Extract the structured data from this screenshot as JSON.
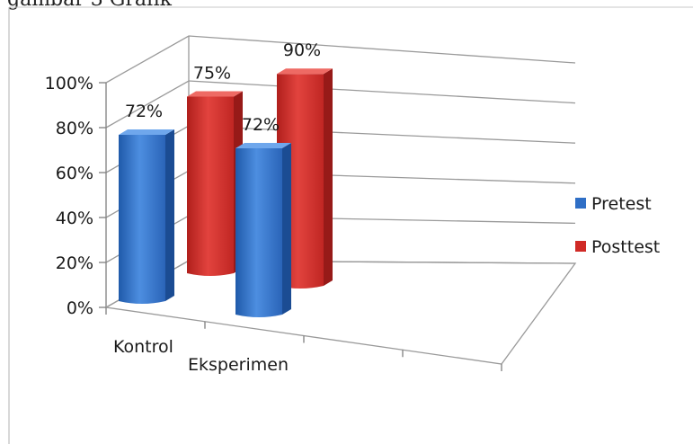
{
  "caption": "gambar 3 Grafik",
  "chart_data": {
    "type": "bar",
    "categories": [
      "Kontrol",
      "Eksperimen"
    ],
    "series": [
      {
        "name": "Pretest",
        "values": [
          72,
          72
        ],
        "color": "#2f6fc6"
      },
      {
        "name": "Posttest",
        "values": [
          75,
          90
        ],
        "color": "#d02a26"
      }
    ],
    "data_labels": [
      [
        "72%",
        "72%"
      ],
      [
        "75%",
        "90%"
      ]
    ],
    "y_ticks": [
      "0%",
      "20%",
      "40%",
      "60%",
      "80%",
      "100%"
    ],
    "ylim": [
      0,
      100
    ],
    "grid": true,
    "legend_position": "right",
    "three_d": true
  }
}
